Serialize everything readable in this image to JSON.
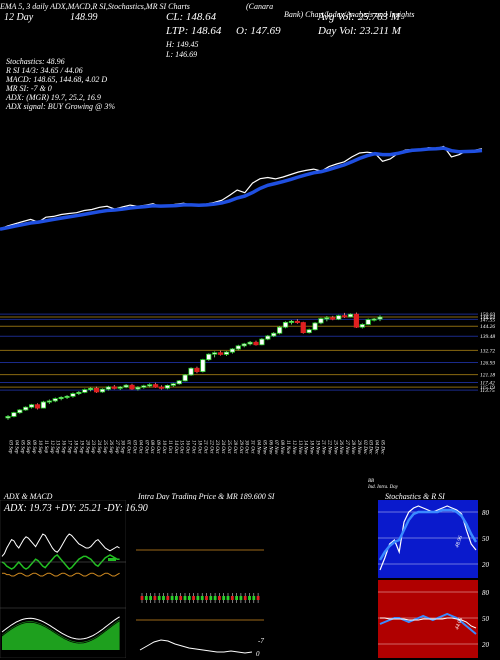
{
  "header": {
    "top_line_1": "(Canara",
    "top_line_2": "Bank) Chart/Index/Analysis and Insights",
    "labels_row": "EMA 5, 3 daily  ADX,MACD,R        SI,Stochastics,MR             SI Charts",
    "trade_row": "12 Day",
    "price_small": "148.99",
    "cl_label": "CL: 148.64",
    "ltp_label": "LTP: 148.64",
    "open_label": "O: 147.69",
    "high_label": "H: 149.45",
    "low_label": "L: 146.69",
    "avg_vol": "Avg Vol: 25.763 M",
    "day_vol": "Day Vol: 23.211 M"
  },
  "indicators": {
    "stochastics": "Stochastics: 48.96",
    "rsi": "R          SI 14/3: 34.65 / 44.06",
    "macd": "MACD: 148.65,  144.68,  4.02  D",
    "mr": "MR            SI: -7 & 0",
    "adx": "ADX:                                (MGR) 19.7,  25.2,  16.9",
    "adx_signal": "ADX  signal:                               BUY Growing @ 3%"
  },
  "chart_data": {
    "type": "candlestick",
    "dates": [
      "03 Sep",
      "04 Sep",
      "05 Sep",
      "06 Sep",
      "09 Sep",
      "10 Sep",
      "11 Sep",
      "12 Sep",
      "13 Sep",
      "16 Sep",
      "17 Sep",
      "18 Sep",
      "19 Sep",
      "20 Sep",
      "23 Sep",
      "24 Sep",
      "25 Sep",
      "26 Sep",
      "27 Sep",
      "30 Sep",
      "01 Oct",
      "03 Oct",
      "04 Oct",
      "07 Oct",
      "08 Oct",
      "09 Oct",
      "10 Oct",
      "11 Oct",
      "14 Oct",
      "15 Oct",
      "16 Oct",
      "17 Oct",
      "18 Oct",
      "21 Oct",
      "22 Oct",
      "23 Oct",
      "24 Oct",
      "25 Oct",
      "28 Oct",
      "29 Oct",
      "30 Oct",
      "31 Oct",
      "04 Nov",
      "05 Nov",
      "06 Nov",
      "07 Nov",
      "08 Nov",
      "11 Nov",
      "12 Nov",
      "13 Nov",
      "14 Nov",
      "18 Nov",
      "19 Nov",
      "21 Nov",
      "22 Nov",
      "25 Nov",
      "26 Nov",
      "27 Nov",
      "28 Nov",
      "29 Nov",
      "02 Dec",
      "03 Dec",
      "04 Dec",
      "05 Dec"
    ],
    "price_ticks": [
      150.03,
      148.64,
      147.55,
      144.26,
      139.48,
      132.72,
      126.93,
      121.18,
      117.42,
      115.19,
      113.75
    ],
    "candles": [
      [
        100.5,
        101.8,
        99.6,
        101.2
      ],
      [
        101.2,
        103.4,
        100.8,
        103.0
      ],
      [
        103.0,
        104.7,
        102.5,
        104.3
      ],
      [
        104.3,
        106.0,
        103.9,
        105.6
      ],
      [
        105.6,
        107.2,
        105.0,
        106.8
      ],
      [
        106.8,
        107.5,
        104.5,
        105.2
      ],
      [
        105.2,
        108.6,
        105.0,
        108.1
      ],
      [
        108.1,
        109.3,
        107.2,
        108.6
      ],
      [
        108.6,
        110.2,
        108.0,
        109.7
      ],
      [
        109.7,
        110.8,
        108.9,
        110.3
      ],
      [
        110.3,
        111.4,
        109.5,
        110.8
      ],
      [
        110.8,
        112.6,
        110.2,
        112.1
      ],
      [
        112.1,
        113.3,
        111.4,
        112.7
      ],
      [
        112.7,
        114.5,
        112.3,
        114.0
      ],
      [
        114.0,
        115.1,
        113.2,
        114.6
      ],
      [
        114.6,
        115.4,
        112.4,
        112.9
      ],
      [
        112.9,
        114.6,
        112.5,
        114.2
      ],
      [
        114.2,
        115.8,
        113.6,
        115.3
      ],
      [
        115.3,
        116.2,
        114.1,
        114.6
      ],
      [
        114.6,
        115.7,
        113.8,
        115.2
      ],
      [
        115.2,
        116.6,
        114.7,
        116.1
      ],
      [
        116.1,
        116.8,
        113.9,
        114.3
      ],
      [
        114.3,
        115.6,
        113.6,
        115.1
      ],
      [
        115.1,
        116.3,
        114.5,
        115.8
      ],
      [
        115.8,
        117.0,
        115.1,
        116.4
      ],
      [
        116.4,
        117.3,
        114.8,
        115.2
      ],
      [
        115.2,
        116.1,
        114.0,
        114.7
      ],
      [
        114.7,
        116.4,
        114.2,
        116.0
      ],
      [
        116.0,
        117.2,
        115.4,
        116.8
      ],
      [
        116.8,
        118.6,
        116.4,
        118.2
      ],
      [
        118.2,
        121.4,
        117.9,
        121.0
      ],
      [
        121.0,
        124.6,
        120.6,
        124.2
      ],
      [
        124.2,
        125.0,
        121.8,
        122.6
      ],
      [
        122.6,
        128.7,
        122.2,
        128.3
      ],
      [
        128.3,
        131.3,
        127.8,
        130.9
      ],
      [
        130.9,
        132.2,
        129.4,
        131.6
      ],
      [
        131.6,
        132.6,
        130.2,
        130.8
      ],
      [
        130.8,
        132.4,
        130.1,
        131.9
      ],
      [
        131.9,
        133.8,
        131.2,
        133.4
      ],
      [
        133.4,
        135.4,
        132.8,
        134.9
      ],
      [
        134.9,
        136.3,
        134.2,
        135.8
      ],
      [
        135.8,
        137.2,
        135.1,
        136.6
      ],
      [
        136.6,
        137.4,
        135.0,
        135.4
      ],
      [
        135.4,
        138.6,
        135.2,
        138.1
      ],
      [
        138.1,
        140.1,
        137.6,
        139.6
      ],
      [
        139.6,
        141.4,
        139.1,
        140.9
      ],
      [
        140.9,
        144.3,
        140.4,
        143.8
      ],
      [
        143.8,
        146.6,
        143.3,
        146.1
      ],
      [
        146.1,
        147.2,
        145.1,
        146.6
      ],
      [
        146.6,
        147.6,
        145.4,
        146.0
      ],
      [
        146.0,
        146.4,
        140.7,
        141.2
      ],
      [
        141.2,
        143.1,
        140.8,
        142.6
      ],
      [
        142.6,
        146.2,
        142.3,
        145.8
      ],
      [
        145.8,
        148.3,
        145.2,
        147.9
      ],
      [
        147.9,
        149.1,
        146.6,
        148.3
      ],
      [
        148.3,
        149.2,
        147.1,
        147.6
      ],
      [
        147.6,
        149.7,
        147.2,
        149.3
      ],
      [
        149.3,
        150.6,
        148.2,
        148.7
      ],
      [
        148.7,
        150.4,
        148.4,
        150.0
      ],
      [
        150.0,
        150.8,
        143.4,
        143.8
      ],
      [
        143.8,
        145.6,
        143.2,
        145.1
      ],
      [
        145.1,
        147.9,
        144.8,
        147.4
      ],
      [
        147.4,
        148.2,
        146.6,
        147.7
      ],
      [
        147.69,
        149.45,
        146.69,
        148.64
      ]
    ],
    "ema": [
      101.0,
      101.9,
      102.9,
      103.8,
      104.7,
      105.2,
      106.0,
      106.8,
      107.6,
      108.3,
      109.0,
      109.8,
      110.6,
      111.4,
      112.1,
      112.4,
      112.9,
      113.6,
      114.0,
      114.4,
      114.9,
      114.7,
      114.8,
      115.0,
      115.4,
      115.4,
      115.2,
      115.4,
      115.9,
      116.6,
      117.8,
      119.5,
      120.6,
      122.7,
      125.2,
      127.0,
      128.1,
      129.2,
      130.5,
      131.9,
      133.2,
      134.4,
      135.1,
      136.3,
      137.7,
      139.1,
      140.9,
      142.9,
      144.5,
      145.7,
      145.2,
      145.2,
      145.9,
      147.0,
      147.8,
      148.0,
      148.5,
      148.6,
      149.0,
      147.5,
      146.9,
      147.0,
      147.2,
      147.6
    ]
  },
  "panel_adx": {
    "label": "ADX  & MACD",
    "values": "ADX: 19.73 +DY: 25.21 -DY: 16.90"
  },
  "panel_intra": {
    "label": "Intra  Day Trading Price  & MR        189.600 SI",
    "low_mark": "-7",
    "zero_mark": "0"
  },
  "panel_stoch": {
    "label": "Stochastics & R            SI",
    "ticks_top": [
      "80",
      "50",
      "20"
    ],
    "ticks_bot": [
      "80",
      "50",
      "20"
    ],
    "val_top": "48.96",
    "val_bot": "44.06"
  },
  "footer_note": "BB",
  "footer_sub": "Ind. Intra. Day"
}
